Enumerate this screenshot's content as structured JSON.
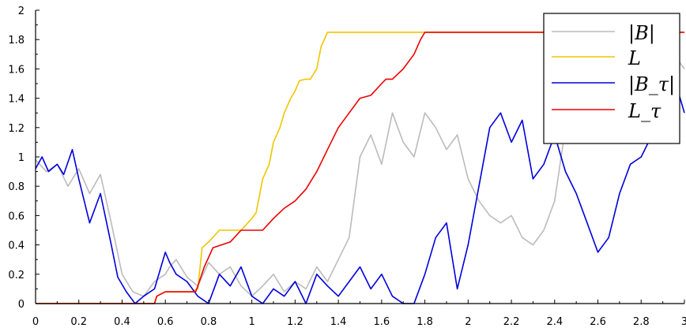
{
  "chart_data": {
    "type": "line",
    "title": "",
    "xlabel": "",
    "ylabel": "",
    "xlim": [
      0,
      3
    ],
    "ylim": [
      0,
      2
    ],
    "xticks": [
      "0",
      "0.2",
      "0.4",
      "0.6",
      "0.8",
      "1",
      "1.2",
      "1.4",
      "1.6",
      "1.8",
      "2",
      "2.2",
      "2.4",
      "2.6",
      "2.8",
      "3"
    ],
    "yticks": [
      "0",
      "0.2",
      "0.4",
      "0.6",
      "0.8",
      "1",
      "1.2",
      "1.4",
      "1.6",
      "1.8",
      "2"
    ],
    "grid": false,
    "legend_position": "top-right",
    "series": [
      {
        "name": "|B|",
        "color": "#bbbbbb",
        "x": [
          0,
          0.05,
          0.1,
          0.15,
          0.2,
          0.25,
          0.3,
          0.35,
          0.4,
          0.45,
          0.5,
          0.55,
          0.6,
          0.62,
          0.65,
          0.7,
          0.75,
          0.8,
          0.85,
          0.9,
          0.95,
          1.0,
          1.05,
          1.1,
          1.15,
          1.2,
          1.25,
          1.3,
          1.35,
          1.4,
          1.45,
          1.5,
          1.55,
          1.6,
          1.65,
          1.7,
          1.75,
          1.8,
          1.85,
          1.9,
          1.95,
          2.0,
          2.05,
          2.1,
          2.15,
          2.2,
          2.25,
          2.3,
          2.35,
          2.4,
          2.45,
          2.5,
          2.55,
          2.6,
          2.65,
          2.7,
          2.75,
          2.8,
          2.85,
          2.9,
          2.95,
          3.0
        ],
        "y": [
          0.98,
          0.9,
          0.95,
          0.8,
          0.92,
          0.75,
          0.88,
          0.55,
          0.2,
          0.08,
          0.05,
          0.15,
          0.2,
          0.25,
          0.3,
          0.18,
          0.12,
          0.28,
          0.2,
          0.25,
          0.12,
          0.05,
          0.12,
          0.2,
          0.08,
          0.15,
          0.1,
          0.25,
          0.15,
          0.3,
          0.45,
          1.0,
          1.15,
          0.95,
          1.3,
          1.1,
          1.0,
          1.3,
          1.2,
          1.05,
          1.15,
          0.85,
          0.7,
          0.6,
          0.55,
          0.6,
          0.45,
          0.4,
          0.5,
          0.7,
          1.2,
          1.4,
          1.45,
          1.3,
          1.35,
          1.15,
          1.25,
          1.2,
          1.4,
          1.55,
          1.7,
          1.6
        ]
      },
      {
        "name": "L",
        "color": "#f2c400",
        "x": [
          0,
          0.4,
          0.5,
          0.55,
          0.56,
          0.6,
          0.65,
          0.7,
          0.72,
          0.75,
          0.77,
          0.8,
          0.85,
          0.9,
          0.95,
          1.0,
          1.02,
          1.05,
          1.08,
          1.1,
          1.13,
          1.15,
          1.18,
          1.2,
          1.22,
          1.25,
          1.27,
          1.3,
          1.32,
          1.35,
          1.37,
          2.0,
          2.5,
          3.0
        ],
        "y": [
          0,
          0,
          0,
          0,
          0.05,
          0.08,
          0.08,
          0.08,
          0.08,
          0.1,
          0.38,
          0.42,
          0.5,
          0.5,
          0.5,
          0.58,
          0.62,
          0.85,
          0.95,
          1.1,
          1.2,
          1.3,
          1.4,
          1.45,
          1.52,
          1.53,
          1.53,
          1.6,
          1.75,
          1.85,
          1.85,
          1.85,
          1.85,
          1.85
        ]
      },
      {
        "name": "|B_τ|",
        "color": "#0000dd",
        "x": [
          0,
          0.03,
          0.06,
          0.1,
          0.13,
          0.17,
          0.2,
          0.25,
          0.3,
          0.35,
          0.38,
          0.42,
          0.46,
          0.5,
          0.55,
          0.6,
          0.62,
          0.65,
          0.7,
          0.75,
          0.8,
          0.85,
          0.9,
          0.95,
          1.0,
          1.05,
          1.1,
          1.15,
          1.2,
          1.25,
          1.3,
          1.35,
          1.4,
          1.45,
          1.5,
          1.55,
          1.6,
          1.65,
          1.7,
          1.75,
          1.8,
          1.85,
          1.9,
          1.95,
          2.0,
          2.05,
          2.1,
          2.15,
          2.2,
          2.25,
          2.3,
          2.35,
          2.4,
          2.45,
          2.5,
          2.55,
          2.6,
          2.65,
          2.7,
          2.75,
          2.8,
          2.85,
          2.9,
          2.95,
          3.0
        ],
        "y": [
          0.92,
          1.0,
          0.9,
          0.95,
          0.88,
          1.05,
          0.85,
          0.55,
          0.75,
          0.4,
          0.18,
          0.08,
          0.0,
          0.05,
          0.1,
          0.35,
          0.28,
          0.2,
          0.15,
          0.05,
          0.0,
          0.2,
          0.12,
          0.25,
          0.05,
          0.0,
          0.1,
          0.05,
          0.15,
          0.0,
          0.2,
          0.12,
          0.05,
          0.15,
          0.25,
          0.1,
          0.2,
          0.05,
          0.0,
          0.0,
          0.2,
          0.45,
          0.55,
          0.1,
          0.4,
          0.8,
          1.2,
          1.3,
          1.1,
          1.25,
          0.85,
          0.95,
          1.15,
          0.9,
          0.75,
          0.55,
          0.35,
          0.45,
          0.75,
          0.95,
          1.0,
          1.15,
          1.45,
          1.55,
          1.3
        ]
      },
      {
        "name": "L_τ",
        "color": "#ee0000",
        "x": [
          0,
          0.4,
          0.55,
          0.56,
          0.6,
          0.7,
          0.74,
          0.75,
          0.78,
          0.82,
          0.9,
          0.95,
          1.0,
          1.05,
          1.1,
          1.15,
          1.2,
          1.25,
          1.3,
          1.35,
          1.4,
          1.45,
          1.5,
          1.55,
          1.6,
          1.62,
          1.65,
          1.7,
          1.75,
          1.78,
          1.8,
          2.0,
          2.5,
          3.0
        ],
        "y": [
          0,
          0,
          0,
          0.05,
          0.08,
          0.08,
          0.08,
          0.12,
          0.25,
          0.38,
          0.42,
          0.5,
          0.5,
          0.5,
          0.58,
          0.65,
          0.7,
          0.78,
          0.9,
          1.05,
          1.2,
          1.3,
          1.4,
          1.42,
          1.5,
          1.53,
          1.53,
          1.6,
          1.7,
          1.8,
          1.85,
          1.85,
          1.85,
          1.85
        ]
      }
    ]
  }
}
